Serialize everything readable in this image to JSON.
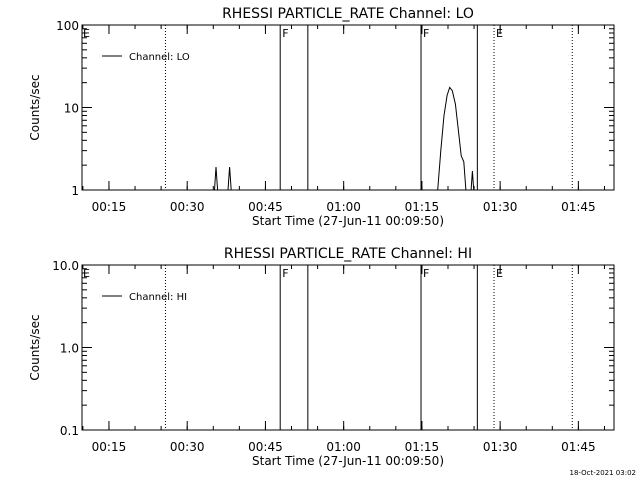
{
  "timestamp": "18-Oct-2021 03:02",
  "chart_data": [
    {
      "type": "line",
      "title": "RHESSI PARTICLE_RATE Channel: LO",
      "xlabel": "Start Time (27-Jun-11 00:09:50)",
      "ylabel": "Counts/sec",
      "yscale": "log",
      "xlim_minutes_after_start": [
        0,
        102
      ],
      "ylim": [
        1,
        100
      ],
      "x_ticks": [
        "00:15",
        "00:30",
        "00:45",
        "01:00",
        "01:15",
        "01:30",
        "01:45"
      ],
      "x_tick_minutes_after_start": [
        5.17,
        20.17,
        35.17,
        50.17,
        65.17,
        80.17,
        95.17
      ],
      "y_ticks": [
        1,
        10,
        100
      ],
      "y_tick_labels": [
        "1",
        "10",
        "100"
      ],
      "legend": {
        "position": "top-left",
        "entries": [
          "Channel: LO"
        ]
      },
      "series": [
        {
          "name": "Channel: LO",
          "points": [
            [
              25.4,
              1.0
            ],
            [
              25.7,
              1.9
            ],
            [
              26.0,
              1.0
            ],
            [
              28.0,
              1.0
            ],
            [
              28.3,
              1.9
            ],
            [
              28.6,
              1.0
            ],
            [
              68.2,
              1.0
            ],
            [
              68.8,
              3.0
            ],
            [
              69.4,
              8.0
            ],
            [
              70.0,
              14.0
            ],
            [
              70.5,
              17.5
            ],
            [
              71.0,
              16.0
            ],
            [
              71.6,
              11.0
            ],
            [
              72.2,
              5.0
            ],
            [
              72.7,
              2.6
            ],
            [
              73.2,
              2.2
            ],
            [
              73.6,
              1.0
            ],
            [
              74.6,
              1.0
            ],
            [
              74.85,
              1.7
            ],
            [
              75.1,
              1.0
            ]
          ]
        }
      ],
      "vlines": [
        {
          "x": 16.0,
          "style": "dotted",
          "label": ""
        },
        {
          "x": 38.0,
          "style": "solid",
          "label": "F"
        },
        {
          "x": 43.3,
          "style": "solid",
          "label": ""
        },
        {
          "x": 65.0,
          "style": "solid",
          "label": "F"
        },
        {
          "x": 75.8,
          "style": "solid",
          "label": ""
        },
        {
          "x": 79.0,
          "style": "dotted",
          "label": "E"
        },
        {
          "x": 94.0,
          "style": "dotted",
          "label": ""
        }
      ],
      "corner_label": "E"
    },
    {
      "type": "line",
      "title": "RHESSI PARTICLE_RATE Channel: HI",
      "xlabel": "Start Time (27-Jun-11 00:09:50)",
      "ylabel": "Counts/sec",
      "yscale": "log",
      "xlim_minutes_after_start": [
        0,
        102
      ],
      "ylim": [
        0.1,
        10.0
      ],
      "x_ticks": [
        "00:15",
        "00:30",
        "00:45",
        "01:00",
        "01:15",
        "01:30",
        "01:45"
      ],
      "x_tick_minutes_after_start": [
        5.17,
        20.17,
        35.17,
        50.17,
        65.17,
        80.17,
        95.17
      ],
      "y_ticks": [
        0.1,
        1.0,
        10.0
      ],
      "y_tick_labels": [
        "0.1",
        "1.0",
        "10.0"
      ],
      "legend": {
        "position": "top-left",
        "entries": [
          "Channel: HI"
        ]
      },
      "series": [
        {
          "name": "Channel: HI",
          "points": []
        }
      ],
      "vlines": [
        {
          "x": 16.0,
          "style": "dotted",
          "label": ""
        },
        {
          "x": 38.0,
          "style": "solid",
          "label": "F"
        },
        {
          "x": 43.3,
          "style": "solid",
          "label": ""
        },
        {
          "x": 65.0,
          "style": "solid",
          "label": "F"
        },
        {
          "x": 75.8,
          "style": "solid",
          "label": ""
        },
        {
          "x": 79.0,
          "style": "dotted",
          "label": "E"
        },
        {
          "x": 94.0,
          "style": "dotted",
          "label": ""
        }
      ],
      "corner_label": "E"
    }
  ]
}
